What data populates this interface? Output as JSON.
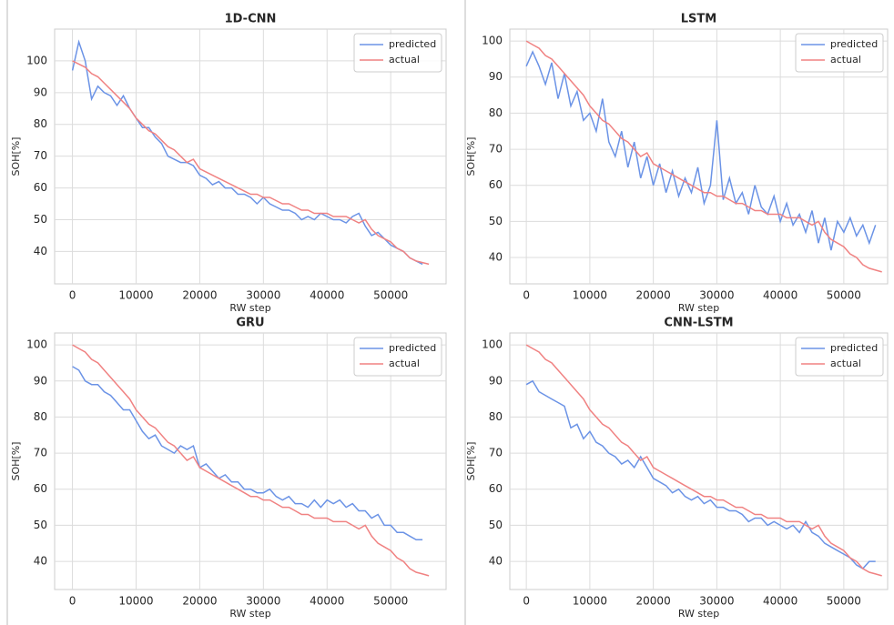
{
  "chart_data": [
    {
      "type": "line",
      "title": "1D-CNN",
      "x_label": "RW step",
      "y_label": "SOH[%]",
      "xlim": [
        -2800,
        58700
      ],
      "ylim": [
        29.8,
        110
      ],
      "xticks": [
        0,
        10000,
        20000,
        30000,
        40000,
        50000
      ],
      "yticks": [
        40,
        50,
        60,
        70,
        80,
        90,
        100
      ],
      "grid": true,
      "legend": "upper right",
      "x": [
        0,
        1000,
        2000,
        3000,
        4000,
        5000,
        6000,
        7000,
        8000,
        9000,
        10000,
        11000,
        12000,
        13000,
        14000,
        15000,
        16000,
        17000,
        18000,
        19000,
        20000,
        21000,
        22000,
        23000,
        24000,
        25000,
        26000,
        27000,
        28000,
        29000,
        30000,
        31000,
        32000,
        33000,
        34000,
        35000,
        36000,
        37000,
        38000,
        39000,
        40000,
        41000,
        42000,
        43000,
        44000,
        45000,
        46000,
        47000,
        48000,
        49000,
        50000,
        51000,
        52000,
        53000,
        54000,
        55000,
        56000
      ],
      "series": [
        {
          "name": "predicted",
          "color": "#6b93e6",
          "values": [
            97,
            106,
            100,
            88,
            92,
            90,
            89,
            86,
            89,
            85,
            82,
            79,
            79,
            76,
            74,
            70,
            69,
            68,
            68,
            67,
            64,
            63,
            61,
            62,
            60,
            60,
            58,
            58,
            57,
            55,
            57,
            55,
            54,
            53,
            53,
            52,
            50,
            51,
            50,
            52,
            51,
            50,
            50,
            49,
            51,
            52,
            48,
            45,
            46,
            44,
            42,
            41,
            40,
            38,
            37,
            36,
            null
          ]
        },
        {
          "name": "actual",
          "color": "#f08282",
          "values": [
            100,
            99,
            98,
            96,
            95,
            93,
            91,
            89,
            87,
            85,
            82,
            80,
            78,
            77,
            75,
            73,
            72,
            70,
            68,
            69,
            66,
            65,
            64,
            63,
            62,
            61,
            60,
            59,
            58,
            58,
            57,
            57,
            56,
            55,
            55,
            54,
            53,
            53,
            52,
            52,
            52,
            51,
            51,
            51,
            50,
            49,
            50,
            47,
            45,
            44,
            43,
            41,
            40,
            38,
            37,
            36.5,
            36
          ]
        }
      ]
    },
    {
      "type": "line",
      "title": "LSTM",
      "x_label": "RW step",
      "y_label": "SOH[%]",
      "xlim": [
        -2600,
        56900
      ],
      "ylim": [
        32.7,
        103.3
      ],
      "xticks": [
        0,
        10000,
        20000,
        30000,
        40000,
        50000
      ],
      "yticks": [
        40,
        50,
        60,
        70,
        80,
        90,
        100
      ],
      "grid": true,
      "legend": "upper right",
      "x": [
        0,
        1000,
        2000,
        3000,
        4000,
        5000,
        6000,
        7000,
        8000,
        9000,
        10000,
        11000,
        12000,
        13000,
        14000,
        15000,
        16000,
        17000,
        18000,
        19000,
        20000,
        21000,
        22000,
        23000,
        24000,
        25000,
        26000,
        27000,
        28000,
        29000,
        30000,
        31000,
        32000,
        33000,
        34000,
        35000,
        36000,
        37000,
        38000,
        39000,
        40000,
        41000,
        42000,
        43000,
        44000,
        45000,
        46000,
        47000,
        48000,
        49000,
        50000,
        51000,
        52000,
        53000,
        54000,
        55000,
        56000
      ],
      "series": [
        {
          "name": "predicted",
          "color": "#6b93e6",
          "values": [
            93,
            97,
            93,
            88,
            94,
            84,
            91,
            82,
            86,
            78,
            80,
            75,
            84,
            72,
            68,
            75,
            65,
            72,
            62,
            68,
            60,
            66,
            58,
            64,
            57,
            62,
            58,
            65,
            55,
            60,
            78,
            56,
            62,
            55,
            58,
            52,
            60,
            54,
            52,
            57,
            50,
            55,
            49,
            52,
            47,
            53,
            44,
            51,
            42,
            50,
            47,
            51,
            46,
            49,
            44,
            49,
            null
          ]
        },
        {
          "name": "actual",
          "color": "#f08282",
          "values": [
            100,
            99,
            98,
            96,
            95,
            93,
            91,
            89,
            87,
            85,
            82,
            80,
            78,
            77,
            75,
            73,
            72,
            70,
            68,
            69,
            66,
            65,
            64,
            63,
            62,
            61,
            60,
            59,
            58,
            58,
            57,
            57,
            56,
            55,
            55,
            54,
            53,
            53,
            52,
            52,
            52,
            51,
            51,
            51,
            50,
            49,
            50,
            47,
            45,
            44,
            43,
            41,
            40,
            38,
            37,
            36.5,
            36
          ]
        }
      ]
    },
    {
      "type": "line",
      "title": "GRU",
      "x_label": "RW step",
      "y_label": "SOH[%]",
      "xlim": [
        -2800,
        58700
      ],
      "ylim": [
        32.2,
        103.3
      ],
      "xticks": [
        0,
        10000,
        20000,
        30000,
        40000,
        50000
      ],
      "yticks": [
        40,
        50,
        60,
        70,
        80,
        90,
        100
      ],
      "grid": true,
      "legend": "upper right",
      "x": [
        0,
        1000,
        2000,
        3000,
        4000,
        5000,
        6000,
        7000,
        8000,
        9000,
        10000,
        11000,
        12000,
        13000,
        14000,
        15000,
        16000,
        17000,
        18000,
        19000,
        20000,
        21000,
        22000,
        23000,
        24000,
        25000,
        26000,
        27000,
        28000,
        29000,
        30000,
        31000,
        32000,
        33000,
        34000,
        35000,
        36000,
        37000,
        38000,
        39000,
        40000,
        41000,
        42000,
        43000,
        44000,
        45000,
        46000,
        47000,
        48000,
        49000,
        50000,
        51000,
        52000,
        53000,
        54000,
        55000,
        56000
      ],
      "series": [
        {
          "name": "predicted",
          "color": "#6b93e6",
          "values": [
            94,
            93,
            90,
            89,
            89,
            87,
            86,
            84,
            82,
            82,
            79,
            76,
            74,
            75,
            72,
            71,
            70,
            72,
            71,
            72,
            66,
            67,
            65,
            63,
            64,
            62,
            62,
            60,
            60,
            59,
            59,
            60,
            58,
            57,
            58,
            56,
            56,
            55,
            57,
            55,
            57,
            56,
            57,
            55,
            56,
            54,
            54,
            52,
            53,
            50,
            50,
            48,
            48,
            47,
            46,
            46,
            null
          ]
        },
        {
          "name": "actual",
          "color": "#f08282",
          "values": [
            100,
            99,
            98,
            96,
            95,
            93,
            91,
            89,
            87,
            85,
            82,
            80,
            78,
            77,
            75,
            73,
            72,
            70,
            68,
            69,
            66,
            65,
            64,
            63,
            62,
            61,
            60,
            59,
            58,
            58,
            57,
            57,
            56,
            55,
            55,
            54,
            53,
            53,
            52,
            52,
            52,
            51,
            51,
            51,
            50,
            49,
            50,
            47,
            45,
            44,
            43,
            41,
            40,
            38,
            37,
            36.5,
            36
          ]
        }
      ]
    },
    {
      "type": "line",
      "title": "CNN-LSTM",
      "x_label": "RW step",
      "y_label": "SOH[%]",
      "xlim": [
        -2600,
        56900
      ],
      "ylim": [
        32.2,
        103.3
      ],
      "xticks": [
        0,
        10000,
        20000,
        30000,
        40000,
        50000
      ],
      "yticks": [
        40,
        50,
        60,
        70,
        80,
        90,
        100
      ],
      "grid": true,
      "legend": "upper right",
      "x": [
        0,
        1000,
        2000,
        3000,
        4000,
        5000,
        6000,
        7000,
        8000,
        9000,
        10000,
        11000,
        12000,
        13000,
        14000,
        15000,
        16000,
        17000,
        18000,
        19000,
        20000,
        21000,
        22000,
        23000,
        24000,
        25000,
        26000,
        27000,
        28000,
        29000,
        30000,
        31000,
        32000,
        33000,
        34000,
        35000,
        36000,
        37000,
        38000,
        39000,
        40000,
        41000,
        42000,
        43000,
        44000,
        45000,
        46000,
        47000,
        48000,
        49000,
        50000,
        51000,
        52000,
        53000,
        54000,
        55000,
        56000
      ],
      "series": [
        {
          "name": "predicted",
          "color": "#6b93e6",
          "values": [
            89,
            90,
            87,
            86,
            85,
            84,
            83,
            77,
            78,
            74,
            76,
            73,
            72,
            70,
            69,
            67,
            68,
            66,
            69,
            66,
            63,
            62,
            61,
            59,
            60,
            58,
            57,
            58,
            56,
            57,
            55,
            55,
            54,
            54,
            53,
            51,
            52,
            52,
            50,
            51,
            50,
            49,
            50,
            48,
            51,
            48,
            47,
            45,
            44,
            43,
            42,
            41,
            39,
            38,
            40,
            40,
            null
          ]
        },
        {
          "name": "actual",
          "color": "#f08282",
          "values": [
            100,
            99,
            98,
            96,
            95,
            93,
            91,
            89,
            87,
            85,
            82,
            80,
            78,
            77,
            75,
            73,
            72,
            70,
            68,
            69,
            66,
            65,
            64,
            63,
            62,
            61,
            60,
            59,
            58,
            58,
            57,
            57,
            56,
            55,
            55,
            54,
            53,
            53,
            52,
            52,
            52,
            51,
            51,
            51,
            50,
            49,
            50,
            47,
            45,
            44,
            43,
            41,
            40,
            38,
            37,
            36.5,
            36
          ]
        }
      ]
    }
  ]
}
